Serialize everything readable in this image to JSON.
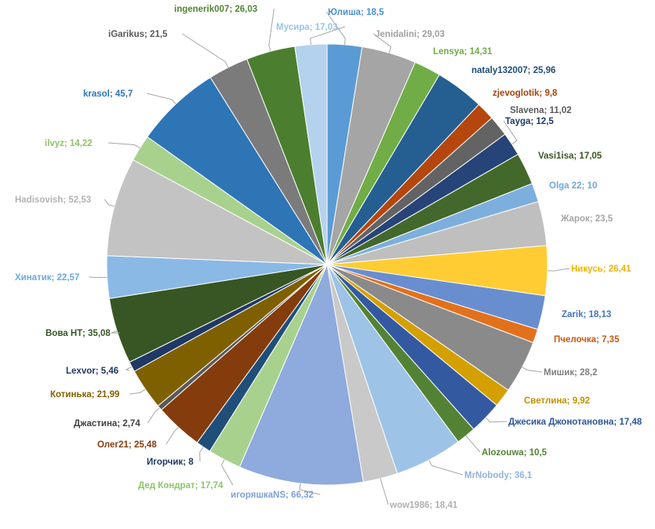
{
  "chart_data": {
    "type": "pie",
    "title": "",
    "slices": [
      {
        "name": "Юлиша",
        "value": "18,5",
        "color": "#5b9bd5",
        "text_color": "#4a8fd3"
      },
      {
        "name": "Jenidalini",
        "value": "29,03",
        "color": "#a5a5a5",
        "text_color": "#a0a0a0"
      },
      {
        "name": "Lensya",
        "value": "14,31",
        "color": "#70ad47",
        "text_color": "#70ad47"
      },
      {
        "name": "nataly132007",
        "value": "25,96",
        "color": "#255e91",
        "text_color": "#1f4e79"
      },
      {
        "name": "zjevoglotik",
        "value": "9,8",
        "color": "#b4460e",
        "text_color": "#a9430f"
      },
      {
        "name": "Slavena",
        "value": "11,02",
        "color": "#636363",
        "text_color": "#595959"
      },
      {
        "name": "Tayga",
        "value": "12,5",
        "color": "#264478",
        "text_color": "#203864"
      },
      {
        "name": "Vasi1isa",
        "value": "17,05",
        "color": "#43682b",
        "text_color": "#385723"
      },
      {
        "name": "Olga 22",
        "value": "10",
        "color": "#7cafdd",
        "text_color": "#6fa8dc"
      },
      {
        "name": "Жарок",
        "value": "23,5",
        "color": "#bfbfbf",
        "text_color": "#a6a6a6"
      },
      {
        "name": "Никусь",
        "value": "26,41",
        "color": "#ffcd33",
        "text_color": "#f0b400"
      },
      {
        "name": "Zarik",
        "value": "18,13",
        "color": "#698ed0",
        "text_color": "#4472c4"
      },
      {
        "name": "Пчелочка",
        "value": "7,35",
        "color": "#e2711d",
        "text_color": "#c55a11"
      },
      {
        "name": "Мишик",
        "value": "28,2",
        "color": "#8a8a8a",
        "text_color": "#7f7f7f"
      },
      {
        "name": "Светлина",
        "value": "9,92",
        "color": "#d4a000",
        "text_color": "#c09000"
      },
      {
        "name": "Джесика Джонотановна",
        "value": "17,48",
        "color": "#335aa1",
        "text_color": "#2f5597"
      },
      {
        "name": "Alozouwa",
        "value": "10,5",
        "color": "#548235",
        "text_color": "#548235"
      },
      {
        "name": "MrNobody",
        "value": "36,1",
        "color": "#9dc3e6",
        "text_color": "#8fb4d9"
      },
      {
        "name": "wow1986",
        "value": "18,41",
        "color": "#c9c9c9",
        "text_color": "#b0b0b0"
      },
      {
        "name": "игоряшкаNS",
        "value": "66,32",
        "color": "#8faadc",
        "text_color": "#7f9fd6"
      },
      {
        "name": "Дед Кондрат",
        "value": "17,74",
        "color": "#a9d18e",
        "text_color": "#8fc36c"
      },
      {
        "name": "Игорчик",
        "value": "8",
        "color": "#1f4e79",
        "text_color": "#1f3864"
      },
      {
        "name": "Олег21",
        "value": "25,48",
        "color": "#843c0c",
        "text_color": "#843c0c"
      },
      {
        "name": "Джастина",
        "value": "2,74",
        "color": "#595959",
        "text_color": "#404040"
      },
      {
        "name": "Котинька",
        "value": "21,99",
        "color": "#7f6000",
        "text_color": "#7f6000"
      },
      {
        "name": "Lexvor",
        "value": "5,46",
        "color": "#203864",
        "text_color": "#203864"
      },
      {
        "name": "Вова НТ",
        "value": "35,08",
        "color": "#375623",
        "text_color": "#375623"
      },
      {
        "name": "Хинатик",
        "value": "22,57",
        "color": "#8ab9e6",
        "text_color": "#6fa8dc"
      },
      {
        "name": "Hadisovish",
        "value": "52,53",
        "color": "#c3c3c3",
        "text_color": "#b3b3b3"
      },
      {
        "name": "ilvyz",
        "value": "14,22",
        "color": "#a9d18e",
        "text_color": "#8fc36c"
      },
      {
        "name": "krasol",
        "value": "45,7",
        "color": "#2e75b6",
        "text_color": "#2e75b6"
      },
      {
        "name": "iGarikus",
        "value": "21,5",
        "color": "#7b7b7b",
        "text_color": "#595959"
      },
      {
        "name": "ingenerik007",
        "value": "26,03",
        "color": "#4b7f2f",
        "text_color": "#548235"
      },
      {
        "name": "Мусира",
        "value": "17,03",
        "color": "#b4d2ee",
        "text_color": "#9cc2e5"
      }
    ]
  }
}
